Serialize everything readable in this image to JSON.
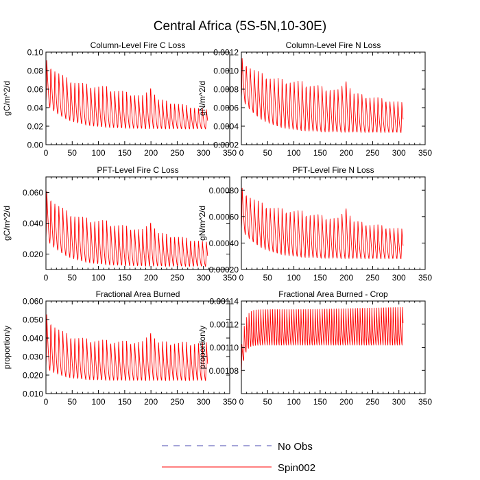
{
  "figure": {
    "title": "Central Africa (5S-5N,10-30E)"
  },
  "legend": {
    "entries": [
      {
        "label": "No Obs",
        "color": "#4a4ab0",
        "dash": "dashed"
      },
      {
        "label": "Spin002",
        "color": "#ff0000",
        "dash": "solid"
      }
    ]
  },
  "chart_data": [
    {
      "type": "line",
      "title": "Column-Level Fire C Loss",
      "xlabel": "",
      "ylabel": "gC/m^2/d",
      "xlim": [
        0,
        350
      ],
      "ylim": [
        0.0,
        0.1
      ],
      "xticks": [
        0,
        50,
        100,
        150,
        200,
        250,
        300,
        350
      ],
      "yticks": [
        0.0,
        0.02,
        0.04,
        0.06,
        0.08,
        0.1
      ],
      "ytick_labels": [
        "0.00",
        "0.02",
        "0.04",
        "0.06",
        "0.08",
        "0.10"
      ],
      "series": [
        {
          "name": "Spin002",
          "color": "#ff0000",
          "model": {
            "x_max": 308,
            "period": 7.6,
            "peak_start": 0.093,
            "peak_mid": 0.062,
            "peak_end": 0.038,
            "trough_start": 0.045,
            "trough_end": 0.017,
            "decay": 40,
            "bump_x": 200,
            "bump_height": 0.014
          }
        }
      ]
    },
    {
      "type": "line",
      "title": "Column-Level Fire N Loss",
      "xlabel": "",
      "ylabel": "gN/m^2/d",
      "xlim": [
        0,
        350
      ],
      "ylim": [
        0.0002,
        0.0012
      ],
      "xticks": [
        0,
        50,
        100,
        150,
        200,
        250,
        300,
        350
      ],
      "yticks": [
        0.0002,
        0.0004,
        0.0006,
        0.0008,
        0.001,
        0.0012
      ],
      "ytick_labels": [
        "0.0002",
        "0.0004",
        "0.0006",
        "0.0008",
        "0.0010",
        "0.0012"
      ],
      "series": [
        {
          "name": "Spin002",
          "color": "#ff0000",
          "model": {
            "x_max": 308,
            "period": 7.6,
            "peak_start": 0.00115,
            "peak_mid": 0.00088,
            "peak_end": 0.00066,
            "trough_start": 0.0007,
            "trough_end": 0.00033,
            "decay": 40,
            "bump_x": 200,
            "bump_height": 0.00016
          }
        }
      ]
    },
    {
      "type": "line",
      "title": "PFT-Level Fire C Loss",
      "xlabel": "",
      "ylabel": "gC/m^2/d",
      "xlim": [
        0,
        350
      ],
      "ylim": [
        0.01,
        0.07
      ],
      "xticks": [
        0,
        50,
        100,
        150,
        200,
        250,
        300,
        350
      ],
      "yticks": [
        0.02,
        0.04,
        0.06
      ],
      "ytick_labels": [
        "0.020",
        "0.040",
        "0.060"
      ],
      "series": [
        {
          "name": "Spin002",
          "color": "#ff0000",
          "model": {
            "x_max": 308,
            "period": 7.6,
            "peak_start": 0.062,
            "peak_mid": 0.041,
            "peak_end": 0.028,
            "trough_start": 0.03,
            "trough_end": 0.012,
            "decay": 40,
            "bump_x": 200,
            "bump_height": 0.008
          }
        }
      ]
    },
    {
      "type": "line",
      "title": "PFT-Level Fire N Loss",
      "xlabel": "",
      "ylabel": "gN/m^2/d",
      "xlim": [
        0,
        350
      ],
      "ylim": [
        0.0002,
        0.0009
      ],
      "xticks": [
        0,
        50,
        100,
        150,
        200,
        250,
        300,
        350
      ],
      "yticks": [
        0.0002,
        0.0004,
        0.0006,
        0.0008
      ],
      "ytick_labels": [
        "0.00020",
        "0.00040",
        "0.00060",
        "0.00080"
      ],
      "series": [
        {
          "name": "Spin002",
          "color": "#ff0000",
          "model": {
            "x_max": 308,
            "period": 7.6,
            "peak_start": 0.00083,
            "peak_mid": 0.00064,
            "peak_end": 0.00051,
            "trough_start": 0.0005,
            "trough_end": 0.00028,
            "decay": 40,
            "bump_x": 200,
            "bump_height": 0.00012
          }
        }
      ]
    },
    {
      "type": "line",
      "title": "Fractional Area Burned",
      "xlabel": "",
      "ylabel": "proportion/y",
      "xlim": [
        0,
        350
      ],
      "ylim": [
        0.01,
        0.06
      ],
      "xticks": [
        0,
        50,
        100,
        150,
        200,
        250,
        300,
        350
      ],
      "yticks": [
        0.01,
        0.02,
        0.03,
        0.04,
        0.05,
        0.06
      ],
      "ytick_labels": [
        "0.010",
        "0.020",
        "0.030",
        "0.040",
        "0.050",
        "0.060"
      ],
      "series": [
        {
          "name": "Spin002",
          "color": "#ff0000",
          "model": {
            "x_max": 308,
            "period": 7.6,
            "peak_start": 0.054,
            "peak_mid": 0.039,
            "peak_end": 0.038,
            "trough_start": 0.024,
            "trough_end": 0.017,
            "decay": 30,
            "bump_x": 200,
            "bump_height": 0.007
          }
        }
      ]
    },
    {
      "type": "line",
      "title": "Fractional Area Burned - Crop",
      "xlabel": "",
      "ylabel": "proportion/y",
      "xlim": [
        0,
        350
      ],
      "ylim": [
        0.00106,
        0.00114
      ],
      "xticks": [
        0,
        50,
        100,
        150,
        200,
        250,
        300,
        350
      ],
      "yticks": [
        0.00108,
        0.0011,
        0.00112,
        0.00114
      ],
      "ytick_labels": [
        "0.00108",
        "0.00110",
        "0.00112",
        "0.00114"
      ],
      "series": [
        {
          "name": "Spin002",
          "color": "#ff0000",
          "model": {
            "x_max": 308,
            "period": 4.5,
            "peak_start": 0.001098,
            "peak_mid": 0.001134,
            "peak_end": 0.001136,
            "trough_start": 0.001074,
            "trough_end": 0.001102,
            "decay": 6,
            "bump_x": 0,
            "bump_height": 0
          }
        }
      ]
    }
  ]
}
